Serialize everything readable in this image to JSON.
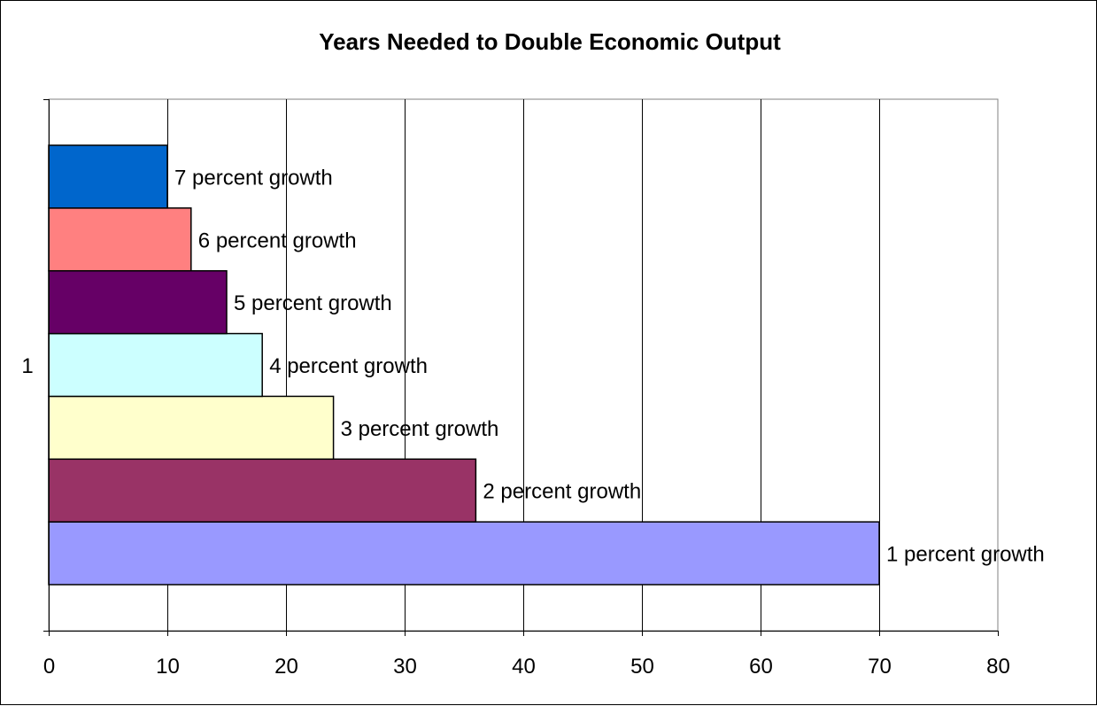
{
  "chart_data": {
    "type": "bar",
    "orientation": "horizontal",
    "title": "Years Needed to Double Economic Output",
    "xlabel": "",
    "ylabel": "",
    "category_label": "1",
    "xlim": [
      0,
      80
    ],
    "x_ticks": [
      "0",
      "10",
      "20",
      "30",
      "40",
      "50",
      "60",
      "70",
      "80"
    ],
    "grid": "vertical",
    "legend": "none",
    "series": [
      {
        "label": "1 percent growth",
        "value": 70,
        "color": "#9999FF"
      },
      {
        "label": "2 percent growth",
        "value": 36,
        "color": "#993366"
      },
      {
        "label": "3 percent growth",
        "value": 24,
        "color": "#FFFFCC"
      },
      {
        "label": "4 percent growth",
        "value": 18,
        "color": "#CCFFFF"
      },
      {
        "label": "5 percent growth",
        "value": 15,
        "color": "#660066"
      },
      {
        "label": "6 percent growth",
        "value": 12,
        "color": "#FF8080"
      },
      {
        "label": "7 percent growth",
        "value": 10,
        "color": "#0066CC"
      }
    ]
  }
}
